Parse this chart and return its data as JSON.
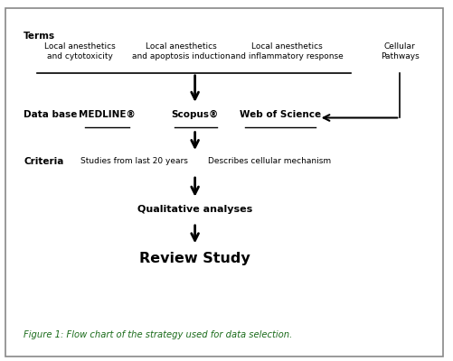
{
  "fig_width": 5.01,
  "fig_height": 4.0,
  "dpi": 100,
  "bg_color": "#ffffff",
  "border_color": "#888888",
  "title_label": "Terms",
  "term1_line1": "Local anesthetics",
  "term1_line2": "and cytotoxicity",
  "term2_line1": "Local anesthetics",
  "term2_line2": "and apoptosis induction",
  "term3_line1": "Local anesthetics",
  "term3_line2": "and inflammatory response",
  "term4_line1": "Cellular",
  "term4_line2": "Pathways",
  "database_label": "Data base",
  "db1": "MEDLINE®",
  "db2": "Scopus®",
  "db3": "Web of Science",
  "criteria_label": "Criteria",
  "criteria1": "Studies from last 20 years",
  "criteria2": "Describes cellular mechanism",
  "qual_label": "Qualitative analyses",
  "review_label": "Review Study",
  "caption": "Figure 1: Flow chart of the strategy used for data selection.",
  "text_color": "#000000",
  "caption_color": "#1a6b1a",
  "arrow_color": "#000000"
}
